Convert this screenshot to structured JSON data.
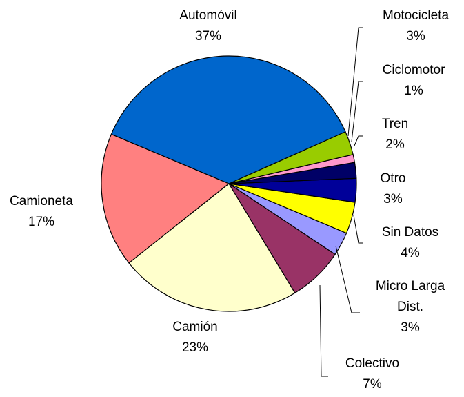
{
  "chart_data": {
    "type": "pie",
    "categories": [
      "Automóvil",
      "Motocicleta",
      "Ciclomotor",
      "Tren",
      "Otro",
      "Sin Datos",
      "Micro Larga Dist.",
      "Colectivo",
      "Camión",
      "Camioneta"
    ],
    "values": [
      37,
      3,
      1,
      2,
      3,
      4,
      3,
      7,
      23,
      17
    ],
    "value_labels": [
      "37%",
      "3%",
      "1%",
      "2%",
      "3%",
      "4%",
      "3%",
      "7%",
      "23%",
      "17%"
    ],
    "colors": [
      "#0066cc",
      "#99cc00",
      "#ff99cc",
      "#000066",
      "#000099",
      "#ffff00",
      "#9999ff",
      "#993366",
      "#ffffcc",
      "#ff8080"
    ]
  }
}
